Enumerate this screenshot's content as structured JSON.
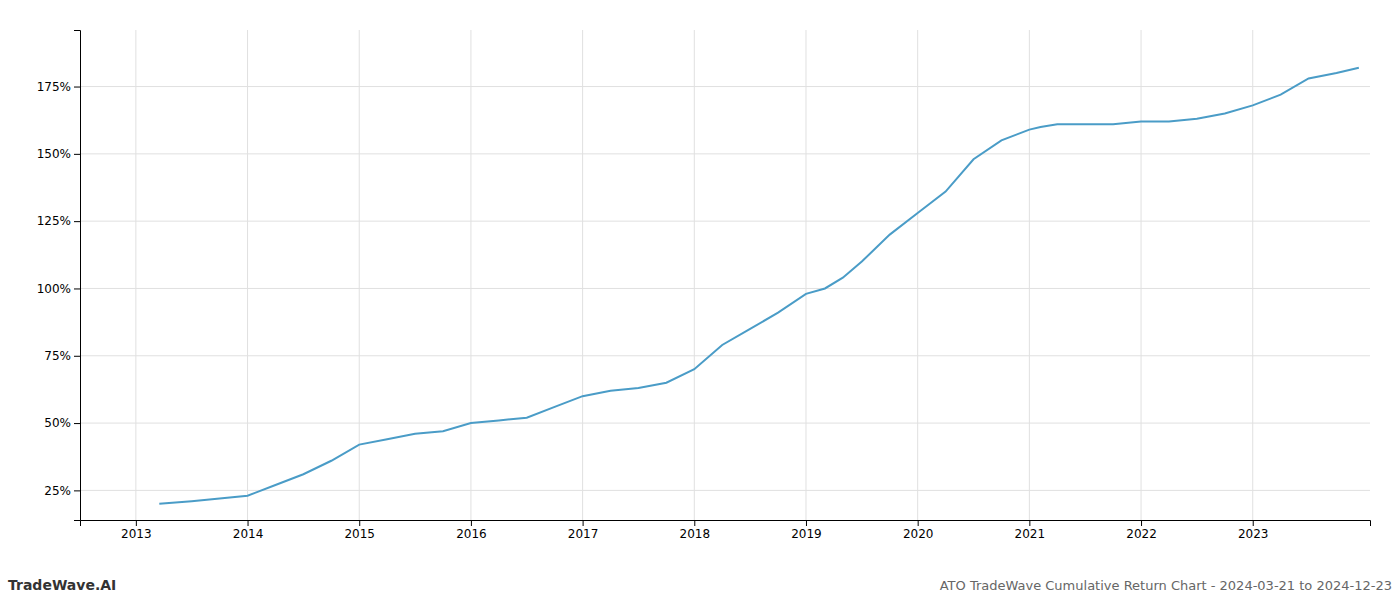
{
  "chart_data": {
    "type": "line",
    "title": "ATO TradeWave Cumulative Return Chart - 2024-03-21 to 2024-12-23",
    "annotations": [
      "TradeWave.AI"
    ],
    "color": "#4a9cc7",
    "grid": true,
    "x": [
      2013.21,
      2013.5,
      2013.75,
      2014.0,
      2014.25,
      2014.5,
      2014.75,
      2015.0,
      2015.25,
      2015.5,
      2015.75,
      2016.0,
      2016.25,
      2016.5,
      2016.75,
      2017.0,
      2017.25,
      2017.5,
      2017.75,
      2018.0,
      2018.25,
      2018.5,
      2018.75,
      2019.0,
      2019.17,
      2019.33,
      2019.5,
      2019.75,
      2020.0,
      2020.25,
      2020.5,
      2020.75,
      2021.0,
      2021.1,
      2021.25,
      2021.5,
      2021.75,
      2022.0,
      2022.25,
      2022.5,
      2022.75,
      2023.0,
      2023.25,
      2023.5,
      2023.75,
      2023.95
    ],
    "values": [
      20,
      21,
      22,
      23,
      27,
      31,
      36,
      42,
      44,
      46,
      47,
      50,
      51,
      52,
      56,
      60,
      62,
      63,
      65,
      70,
      79,
      85,
      91,
      98,
      100,
      104,
      110,
      120,
      128,
      136,
      148,
      155,
      159,
      160,
      161,
      161,
      161,
      162,
      162,
      163,
      165,
      168,
      172,
      178,
      180,
      182
    ],
    "xlim": [
      2012.5,
      2024.05
    ],
    "xticks": [
      2013,
      2014,
      2015,
      2016,
      2017,
      2018,
      2019,
      2020,
      2021,
      2022,
      2023
    ],
    "ylim": [
      14,
      196
    ],
    "yticks": [
      {
        "value": 25,
        "label": "25%"
      },
      {
        "value": 50,
        "label": "50%"
      },
      {
        "value": 75,
        "label": "75%"
      },
      {
        "value": 100,
        "label": "100%"
      },
      {
        "value": 125,
        "label": "125%"
      },
      {
        "value": 150,
        "label": "150%"
      },
      {
        "value": 175,
        "label": "175%"
      }
    ]
  }
}
